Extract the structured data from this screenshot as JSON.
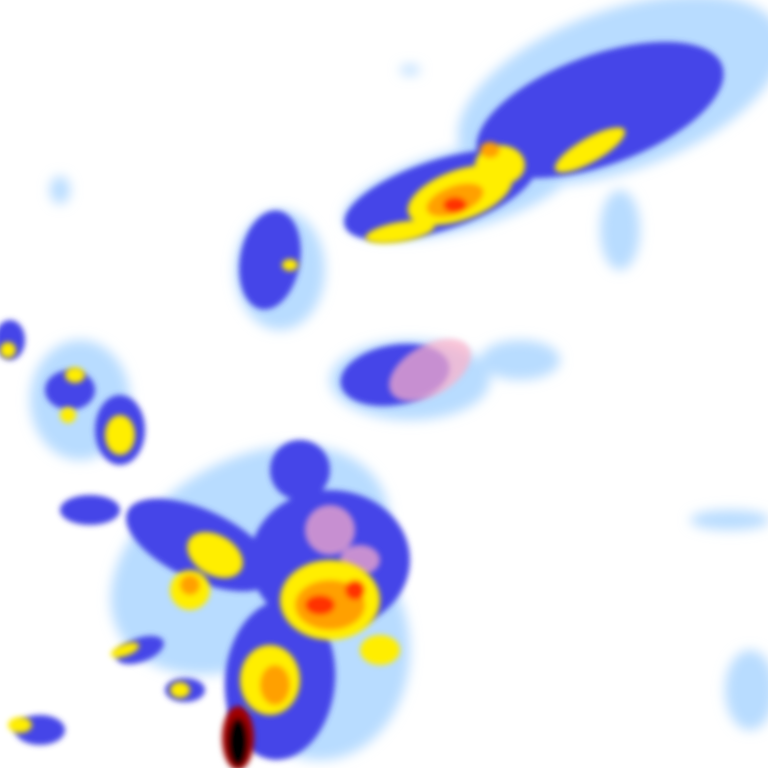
{
  "map": {
    "type": "weather-radar-tile",
    "palette": {
      "light": "#b8dcff",
      "lightblue": "#8fc4f5",
      "blue": "#5a5af0",
      "violet": "#4444e8",
      "yellow": "#ffee00",
      "orange": "#ffa000",
      "red": "#ff3000",
      "darkred": "#a00000",
      "black": "#000000",
      "pink": "#ffb0c8"
    }
  }
}
